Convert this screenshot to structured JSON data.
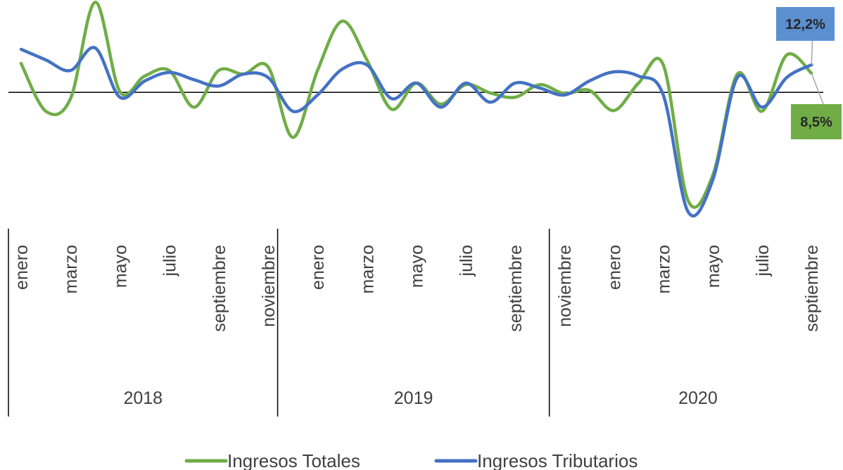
{
  "chart_data": {
    "type": "line",
    "categories": [
      "enero",
      null,
      "marzo",
      null,
      "mayo",
      null,
      "julio",
      null,
      "septiembre",
      null,
      "noviembre",
      null,
      "enero",
      null,
      "marzo",
      null,
      "mayo",
      null,
      "julio",
      null,
      "septiembre",
      null,
      "noviembre",
      null,
      "enero",
      null,
      "marzo",
      null,
      "mayo",
      null,
      "julio",
      null,
      "septiembre"
    ],
    "groups": [
      "2018",
      "2019",
      "2020"
    ],
    "series": [
      {
        "name": "Ingresos Totales",
        "color": "#70ad47",
        "values": [
          12.8,
          -8.4,
          -2.8,
          40,
          0.3,
          7.2,
          9.7,
          -6.6,
          9.7,
          8.1,
          11.3,
          -20,
          9.7,
          31.6,
          14.4,
          -7.5,
          4.1,
          -5.3,
          3.4,
          -0.3,
          -2.2,
          3.4,
          -0.6,
          0.9,
          -8.1,
          4.1,
          12.2,
          -48,
          -37,
          8.1,
          -8.4,
          16.6,
          8.5
        ],
        "value_labels": [
          null,
          null,
          null,
          null,
          null,
          null,
          null,
          null,
          null,
          null,
          null,
          null,
          null,
          null,
          null,
          null,
          null,
          null,
          null,
          null,
          null,
          null,
          null,
          null,
          null,
          null,
          null,
          null,
          null,
          null,
          null,
          null,
          "8,5%"
        ]
      },
      {
        "name": "Ingresos Tributarios",
        "color": "#4472c4",
        "values": [
          19.1,
          14.4,
          9.7,
          19.7,
          -2.2,
          5,
          8.8,
          5.6,
          2.8,
          8.1,
          6.6,
          -8.4,
          -1.2,
          10.3,
          12.2,
          -2.8,
          4.1,
          -6.6,
          4.1,
          -4.4,
          4.1,
          1.9,
          -1.2,
          5,
          9.1,
          7.2,
          -1.2,
          -53,
          -39,
          6.6,
          -6.6,
          6.6,
          12.2
        ],
        "value_labels": [
          null,
          null,
          null,
          null,
          null,
          null,
          null,
          null,
          null,
          null,
          null,
          null,
          null,
          null,
          null,
          null,
          null,
          null,
          null,
          null,
          null,
          null,
          null,
          null,
          null,
          null,
          null,
          null,
          null,
          null,
          null,
          null,
          "12,2%"
        ]
      }
    ],
    "ylim": [
      -59,
      41
    ]
  }
}
